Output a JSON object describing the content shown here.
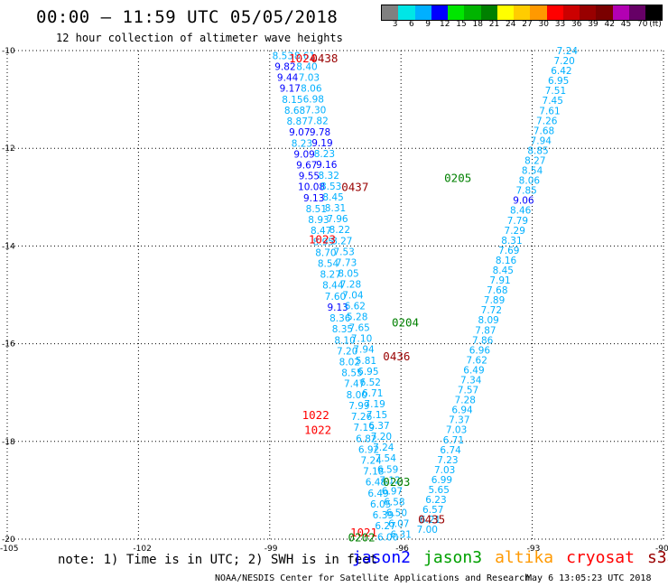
{
  "header": {
    "title": "00:00 – 11:59 UTC 05/05/2018",
    "subtitle": "12 hour collection of altimeter wave heights"
  },
  "colorbar": {
    "colors": [
      "#808080",
      "#00e6e6",
      "#00b0ff",
      "#0000ff",
      "#00e600",
      "#00b400",
      "#008000",
      "#ffff00",
      "#ffcc00",
      "#ff9900",
      "#ff0000",
      "#cc0000",
      "#990000",
      "#7a0000",
      "#b300b3",
      "#660066",
      "#000000"
    ],
    "labels": [
      "3",
      "6",
      "9",
      "12",
      "15",
      "18",
      "21",
      "24",
      "27",
      "30",
      "33",
      "36",
      "39",
      "42",
      "45",
      "70",
      "(ft)"
    ]
  },
  "map": {
    "lon_range": [
      -105,
      -90
    ],
    "lat_range": [
      -20,
      -10
    ],
    "lon_ticks": [
      "-105",
      "-102",
      "-99",
      "-96",
      "-93",
      "-90"
    ],
    "lat_ticks": [
      "-10",
      "-12",
      "-14",
      "-16",
      "-18",
      "-20"
    ],
    "tick_lons": [
      -105,
      -102,
      -99,
      -96,
      -93,
      -90
    ],
    "tick_lats": [
      -10,
      -12,
      -14,
      -16,
      -18,
      -20
    ]
  },
  "tracks": [
    {
      "name": "track-a",
      "start": [
        -98.7,
        -10.1
      ],
      "end": [
        -96.3,
        -19.95
      ],
      "values": [
        "8.53",
        "9.82",
        "9.44",
        "9.17",
        "8.15",
        "8.68",
        "8.87",
        "9.07",
        "8.23",
        "9.09",
        "9.67",
        "9.55",
        "10.08",
        "9.13",
        "8.51",
        "8.93",
        "8.47",
        "8.95",
        "8.70",
        "8.54",
        "8.27",
        "8.44",
        "7.60",
        "9.13",
        "8.36",
        "8.35",
        "8.10",
        "7.20",
        "8.02",
        "8.55",
        "7.47",
        "8.00",
        "7.99",
        "7.26",
        "7.19",
        "6.82",
        "6.92",
        "7.24",
        "7.18",
        "6.48",
        "6.49",
        "6.05",
        "6.39",
        "6.27",
        "6.00"
      ],
      "colors": [
        "#00b0ff",
        "#0000ff",
        "#0000ff",
        "#0000ff",
        "#00b0ff",
        "#00b0ff",
        "#00b0ff",
        "#0000ff",
        "#00b0ff",
        "#0000ff",
        "#0000ff",
        "#0000ff",
        "#0000ff",
        "#0000ff",
        "#00b0ff",
        "#00b0ff",
        "#00b0ff",
        "#00b0ff",
        "#00b0ff",
        "#00b0ff",
        "#00b0ff",
        "#00b0ff",
        "#00b0ff",
        "#0000ff",
        "#00b0ff",
        "#00b0ff",
        "#00b0ff",
        "#00b0ff",
        "#00b0ff",
        "#00b0ff",
        "#00b0ff",
        "#00b0ff",
        "#00b0ff",
        "#00b0ff",
        "#00b0ff",
        "#00b0ff",
        "#00b0ff",
        "#00b0ff",
        "#00b0ff",
        "#00b0ff",
        "#00b0ff",
        "#00b0ff",
        "#00b0ff",
        "#00b0ff",
        "#00b0ff"
      ]
    },
    {
      "name": "track-b",
      "start": [
        -98.2,
        -10.1
      ],
      "end": [
        -96.0,
        -19.9
      ],
      "values": [
        "8.61",
        "8.40",
        "7.03",
        "8.06",
        "6.98",
        "7.30",
        "7.82",
        "9.78",
        "9.19",
        "8.23",
        "9.16",
        "8.32",
        "8.53",
        "8.45",
        "8.31",
        "7.96",
        "8.22",
        "8.27",
        "7.53",
        "7.73",
        "8.05",
        "7.28",
        "7.04",
        "6.62",
        "5.28",
        "7.65",
        "7.10",
        "7.94",
        "5.81",
        "6.95",
        "6.52",
        "6.71",
        "7.19",
        "7.15",
        "6.37",
        "7.20",
        "7.24",
        "7.54",
        "6.59",
        "7.12",
        "6.97",
        "6.58",
        "6.50",
        "6.07",
        "6.31"
      ],
      "colors": [
        "#00b0ff",
        "#00b0ff",
        "#00b0ff",
        "#00b0ff",
        "#00b0ff",
        "#00b0ff",
        "#00b0ff",
        "#0000ff",
        "#0000ff",
        "#00b0ff",
        "#0000ff",
        "#00b0ff",
        "#00b0ff",
        "#00b0ff",
        "#00b0ff",
        "#00b0ff",
        "#00b0ff",
        "#00b0ff",
        "#00b0ff",
        "#00b0ff",
        "#00b0ff",
        "#00b0ff",
        "#00b0ff",
        "#00b0ff",
        "#00b0ff",
        "#00b0ff",
        "#00b0ff",
        "#00b0ff",
        "#00b0ff",
        "#00b0ff",
        "#00b0ff",
        "#00b0ff",
        "#00b0ff",
        "#00b0ff",
        "#00b0ff",
        "#00b0ff",
        "#00b0ff",
        "#00b0ff",
        "#00b0ff",
        "#00b0ff",
        "#00b0ff",
        "#00b0ff",
        "#00b0ff",
        "#00b0ff",
        "#00b0ff"
      ]
    },
    {
      "name": "track-c",
      "start": [
        -92.2,
        -10.0
      ],
      "end": [
        -95.4,
        -19.8
      ],
      "values": [
        "7.24",
        "7.20",
        "6.42",
        "6.95",
        "7.51",
        "7.45",
        "7.61",
        "7.26",
        "7.68",
        "7.94",
        "8.85",
        "8.27",
        "8.54",
        "8.06",
        "7.85",
        "9.06",
        "8.46",
        "7.79",
        "7.29",
        "8.31",
        "7.69",
        "8.16",
        "8.45",
        "7.91",
        "7.68",
        "7.89",
        "7.72",
        "8.09",
        "7.87",
        "7.86",
        "6.96",
        "7.62",
        "6.49",
        "7.34",
        "7.57",
        "7.28",
        "6.94",
        "7.37",
        "7.03",
        "6.71",
        "6.74",
        "7.23",
        "7.03",
        "6.99",
        "5.65",
        "6.23",
        "6.57",
        "6.21",
        "7.00"
      ],
      "colors": [
        "#00b0ff",
        "#00b0ff",
        "#00b0ff",
        "#00b0ff",
        "#00b0ff",
        "#00b0ff",
        "#00b0ff",
        "#00b0ff",
        "#00b0ff",
        "#00b0ff",
        "#00b0ff",
        "#00b0ff",
        "#00b0ff",
        "#00b0ff",
        "#00b0ff",
        "#0000ff",
        "#00b0ff",
        "#00b0ff",
        "#00b0ff",
        "#00b0ff",
        "#00b0ff",
        "#00b0ff",
        "#00b0ff",
        "#00b0ff",
        "#00b0ff",
        "#00b0ff",
        "#00b0ff",
        "#00b0ff",
        "#00b0ff",
        "#00b0ff",
        "#00b0ff",
        "#00b0ff",
        "#00b0ff",
        "#00b0ff",
        "#00b0ff",
        "#00b0ff",
        "#00b0ff",
        "#00b0ff",
        "#00b0ff",
        "#00b0ff",
        "#00b0ff",
        "#00b0ff",
        "#00b0ff",
        "#00b0ff",
        "#00b0ff",
        "#00b0ff",
        "#00b0ff",
        "#00b0ff",
        "#00b0ff"
      ]
    }
  ],
  "time_labels": [
    {
      "text": "0438",
      "lon": -97.75,
      "lat": -10.15,
      "color": "#990000"
    },
    {
      "text": "1024",
      "lon": -98.25,
      "lat": -10.15,
      "color": "#ff0000"
    },
    {
      "text": "0437",
      "lon": -97.05,
      "lat": -12.78,
      "color": "#990000"
    },
    {
      "text": "1023",
      "lon": -97.8,
      "lat": -13.85,
      "color": "#ff0000"
    },
    {
      "text": "0205",
      "lon": -94.7,
      "lat": -12.6,
      "color": "#008000"
    },
    {
      "text": "0204",
      "lon": -95.9,
      "lat": -15.55,
      "color": "#008000"
    },
    {
      "text": "0436",
      "lon": -96.1,
      "lat": -16.25,
      "color": "#990000"
    },
    {
      "text": "1022",
      "lon": -97.95,
      "lat": -17.45,
      "color": "#ff0000"
    },
    {
      "text": "1022",
      "lon": -97.9,
      "lat": -17.75,
      "color": "#ff0000"
    },
    {
      "text": "0203",
      "lon": -96.1,
      "lat": -18.82,
      "color": "#008000"
    },
    {
      "text": "0435",
      "lon": -95.3,
      "lat": -19.58,
      "color": "#990000"
    },
    {
      "text": "1021",
      "lon": -96.85,
      "lat": -19.85,
      "color": "#ff0000"
    },
    {
      "text": "0202",
      "lon": -96.9,
      "lat": -19.95,
      "color": "#008000"
    }
  ],
  "footer": {
    "note": "note: 1) Time is in UTC; 2) SWH is in feet",
    "legend": [
      {
        "label": "jason2",
        "color": "#0000ff"
      },
      {
        "label": "jason3",
        "color": "#00a000"
      },
      {
        "label": "altika",
        "color": "#ff9900"
      },
      {
        "label": "cryosat",
        "color": "#ff0000"
      },
      {
        "label": "s3a",
        "color": "#990000"
      }
    ],
    "credit": "NOAA/NESDIS Center for Satellite Applications and Research",
    "timestamp": "May  6 13:05:23 UTC 2018"
  }
}
